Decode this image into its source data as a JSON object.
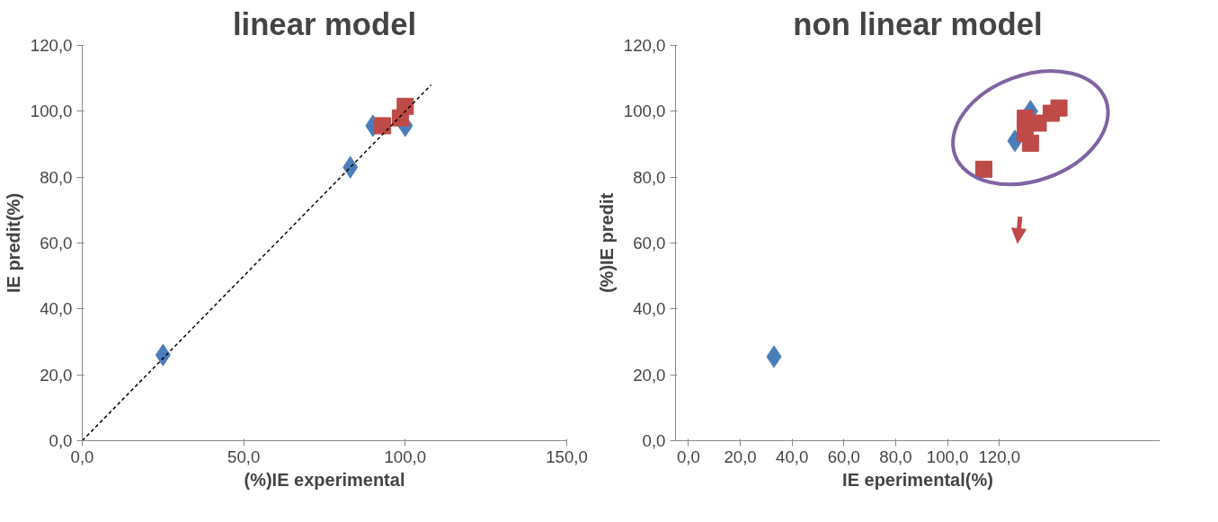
{
  "chart_data": [
    {
      "type": "scatter",
      "title": "linear model",
      "xlabel": "(%)IE experimental",
      "ylabel": "IE predit(%)",
      "xlim": [
        0,
        150
      ],
      "ylim": [
        0,
        120
      ],
      "xticks": [
        {
          "value": 0,
          "label": "0,0"
        },
        {
          "value": 50,
          "label": "50,0"
        },
        {
          "value": 100,
          "label": "100,0"
        },
        {
          "value": 150,
          "label": "150,0"
        }
      ],
      "yticks": [
        {
          "value": 0,
          "label": "0,0"
        },
        {
          "value": 20,
          "label": "20,0"
        },
        {
          "value": 40,
          "label": "40,0"
        },
        {
          "value": 60,
          "label": "60,0"
        },
        {
          "value": 80,
          "label": "80,0"
        },
        {
          "value": 100,
          "label": "100,0"
        },
        {
          "value": 120,
          "label": "120,0"
        }
      ],
      "grid": false,
      "series": [
        {
          "color": "#4a7ebb",
          "marker": "diamond",
          "x": [
            25,
            83,
            90,
            100
          ],
          "values": [
            26,
            83,
            95.6,
            95.6
          ]
        },
        {
          "color": "#be4b48",
          "marker": "square",
          "x": [
            93,
            98.5,
            100
          ],
          "values": [
            95.6,
            98,
            101.5
          ]
        },
        {
          "type": "line",
          "color": "#000000",
          "line_style": "dashed",
          "marker": "none",
          "x": [
            0,
            108
          ],
          "values": [
            0,
            108
          ]
        }
      ]
    },
    {
      "type": "scatter",
      "title": "non linear model",
      "xlabel": "IE eperimental(%)",
      "ylabel": "(%)IE predit",
      "xlim": [
        -5,
        182
      ],
      "ylim": [
        0,
        120
      ],
      "xticks": [
        {
          "value": 0,
          "label": "0,0"
        },
        {
          "value": 20,
          "label": "20,0"
        },
        {
          "value": 40,
          "label": "40,0"
        },
        {
          "value": 60,
          "label": "60,0"
        },
        {
          "value": 80,
          "label": "80,0"
        },
        {
          "value": 100,
          "label": "100,0"
        },
        {
          "value": 120,
          "label": "120,0"
        }
      ],
      "yticks": [
        {
          "value": 0,
          "label": "0,0"
        },
        {
          "value": 20,
          "label": "20,0"
        },
        {
          "value": 40,
          "label": "40,0"
        },
        {
          "value": 60,
          "label": "60,0"
        },
        {
          "value": 80,
          "label": "80,0"
        },
        {
          "value": 100,
          "label": "100,0"
        },
        {
          "value": 120,
          "label": "120,0"
        }
      ],
      "grid": false,
      "series": [
        {
          "color": "#4a7ebb",
          "marker": "diamond",
          "x": [
            33,
            126,
            132
          ],
          "values": [
            25.5,
            91,
            100
          ]
        },
        {
          "color": "#be4b48",
          "marker": "square",
          "x": [
            114,
            130,
            130,
            132,
            135,
            140,
            143
          ],
          "values": [
            82.4,
            97.9,
            93.3,
            90.3,
            96.4,
            99.4,
            101
          ]
        }
      ]
    }
  ]
}
